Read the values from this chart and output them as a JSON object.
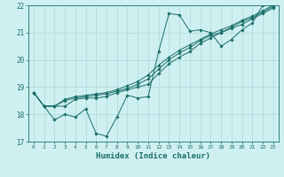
{
  "bg_color": "#cff0f0",
  "grid_color": "#aadada",
  "line_color": "#1a6e6a",
  "xlabel": "Humidex (Indice chaleur)",
  "xlim": [
    -0.5,
    23.5
  ],
  "ylim": [
    17,
    22
  ],
  "yticks": [
    17,
    18,
    19,
    20,
    21,
    22
  ],
  "xticks": [
    0,
    1,
    2,
    3,
    4,
    5,
    6,
    7,
    8,
    9,
    10,
    11,
    12,
    13,
    14,
    15,
    16,
    17,
    18,
    19,
    20,
    21,
    22,
    23
  ],
  "series": [
    [
      18.8,
      18.3,
      17.8,
      18.0,
      17.9,
      18.2,
      17.3,
      17.2,
      17.9,
      18.7,
      18.6,
      18.65,
      20.3,
      21.7,
      21.65,
      21.05,
      21.1,
      21.0,
      20.5,
      20.75,
      21.1,
      21.35,
      22.0,
      22.0
    ],
    [
      18.8,
      18.3,
      18.3,
      18.3,
      18.55,
      18.6,
      18.6,
      18.65,
      18.8,
      18.9,
      19.0,
      19.1,
      19.5,
      19.85,
      20.1,
      20.3,
      20.6,
      20.8,
      21.0,
      21.15,
      21.3,
      21.5,
      21.7,
      21.9
    ],
    [
      18.8,
      18.3,
      18.3,
      18.5,
      18.6,
      18.65,
      18.7,
      18.75,
      18.85,
      18.95,
      19.1,
      19.3,
      19.65,
      20.0,
      20.25,
      20.45,
      20.7,
      20.9,
      21.0,
      21.2,
      21.4,
      21.55,
      21.75,
      21.95
    ],
    [
      18.8,
      18.3,
      18.3,
      18.55,
      18.65,
      18.7,
      18.75,
      18.8,
      18.9,
      19.05,
      19.2,
      19.45,
      19.8,
      20.1,
      20.35,
      20.55,
      20.75,
      20.95,
      21.1,
      21.25,
      21.45,
      21.6,
      21.8,
      22.0
    ]
  ]
}
